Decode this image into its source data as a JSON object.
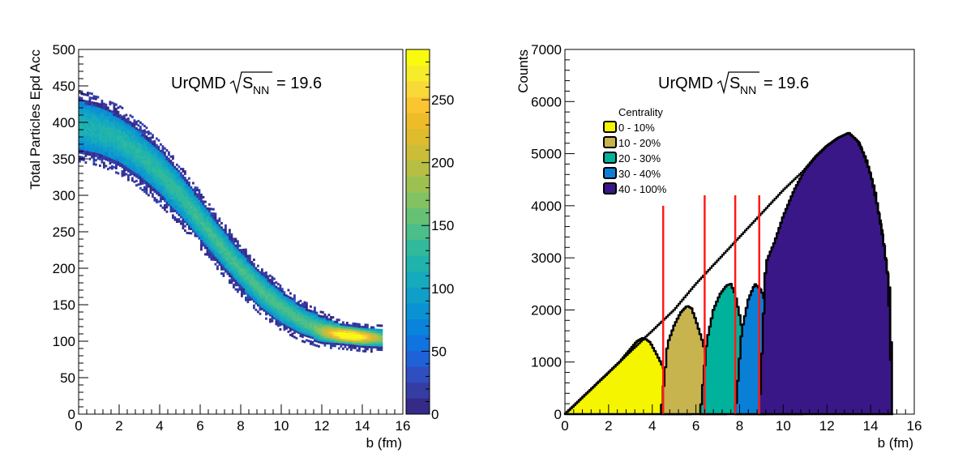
{
  "chart_data": [
    {
      "type": "heatmap",
      "title": "UrQMD",
      "title_symbol": "S",
      "title_subscript": "NN",
      "title_value": "= 19.6",
      "xlabel": "b (fm)",
      "ylabel": "Total Particles Epd Acc",
      "xlim": [
        0,
        16
      ],
      "ylim": [
        0,
        500
      ],
      "xticks": [
        "0",
        "2",
        "4",
        "6",
        "8",
        "10",
        "12",
        "14",
        "16"
      ],
      "yticks": [
        "0",
        "50",
        "100",
        "150",
        "200",
        "250",
        "300",
        "350",
        "400",
        "450",
        "500"
      ],
      "colorbar": {
        "zlim": [
          0,
          290
        ],
        "ticks": [
          "0",
          "50",
          "100",
          "150",
          "200",
          "250"
        ],
        "colors": [
          "#352a87",
          "#353ca4",
          "#2f4fc0",
          "#1f62d8",
          "#0f73e0",
          "#0983db",
          "#0a92d2",
          "#0f9fc9",
          "#16aabd",
          "#20b3ad",
          "#31b99b",
          "#4bbe89",
          "#66c175",
          "#82c262",
          "#9dc151",
          "#b6bf43",
          "#cbbd38",
          "#dfbb2e",
          "#efbc29",
          "#fbc531",
          "#f8d937",
          "#f7ec2a",
          "#f9fb0e"
        ]
      },
      "band": {
        "x_range": [
          0,
          15
        ],
        "center_y": [
          [
            0,
            395
          ],
          [
            1,
            388
          ],
          [
            2,
            375
          ],
          [
            3,
            355
          ],
          [
            4,
            330
          ],
          [
            5,
            300
          ],
          [
            6,
            265
          ],
          [
            7,
            230
          ],
          [
            8,
            197
          ],
          [
            9,
            168
          ],
          [
            10,
            145
          ],
          [
            11,
            127
          ],
          [
            12,
            115
          ],
          [
            13,
            108
          ],
          [
            14,
            104
          ],
          [
            15,
            102
          ]
        ],
        "half_width_y": [
          [
            0,
            38
          ],
          [
            2,
            36
          ],
          [
            4,
            34
          ],
          [
            6,
            30
          ],
          [
            8,
            27
          ],
          [
            10,
            24
          ],
          [
            12,
            19
          ],
          [
            13,
            15
          ],
          [
            15,
            14
          ]
        ],
        "hotspot": {
          "x": 13.3,
          "y": 106
        }
      }
    },
    {
      "type": "area",
      "title": "UrQMD",
      "title_symbol": "S",
      "title_subscript": "NN",
      "title_value": "= 19.6",
      "xlabel": "b (fm)",
      "ylabel": "Counts",
      "xlim": [
        0,
        16
      ],
      "ylim": [
        0,
        7000
      ],
      "xticks": [
        "0",
        "2",
        "4",
        "6",
        "8",
        "10",
        "12",
        "14",
        "16"
      ],
      "yticks": [
        "0",
        "1000",
        "2000",
        "3000",
        "4000",
        "5000",
        "6000",
        "7000"
      ],
      "legend_title": "Centrality",
      "total_outline": {
        "x": [
          0,
          1,
          2,
          3,
          4,
          5,
          6,
          7,
          8,
          9,
          10,
          11,
          11.5,
          12,
          12.5,
          13,
          13.5,
          14,
          14.5,
          14.8,
          15
        ],
        "y": [
          0,
          400,
          800,
          1200,
          1600,
          2000,
          2500,
          2950,
          3400,
          3850,
          4300,
          4700,
          4950,
          5150,
          5300,
          5400,
          5200,
          4600,
          3600,
          2600,
          0
        ]
      },
      "series": [
        {
          "name": "0 - 10%",
          "color": "#f5f500",
          "x": [
            0,
            0.5,
            1,
            1.5,
            2,
            2.5,
            3,
            3.3,
            3.6,
            3.9,
            4.2,
            4.5,
            4.8,
            5.1,
            5.5,
            5.8
          ],
          "y": [
            0,
            200,
            400,
            600,
            800,
            1000,
            1250,
            1400,
            1470,
            1380,
            1150,
            900,
            600,
            300,
            60,
            0
          ]
        },
        {
          "name": "10 - 20%",
          "color": "#c8b44e",
          "x": [
            4.4,
            4.7,
            5.0,
            5.3,
            5.6,
            5.8,
            6.0,
            6.3,
            6.6,
            6.9,
            7.2,
            7.4
          ],
          "y": [
            0,
            1350,
            1700,
            1950,
            2080,
            2030,
            1800,
            1400,
            900,
            400,
            80,
            0
          ]
        },
        {
          "name": "20 - 30%",
          "color": "#00b29b",
          "x": [
            6.2,
            6.5,
            6.8,
            7.1,
            7.4,
            7.6,
            7.8,
            8.0,
            8.3,
            8.6,
            8.9,
            9.2
          ],
          "y": [
            0,
            1400,
            2000,
            2300,
            2470,
            2500,
            2300,
            1900,
            1200,
            600,
            150,
            0
          ]
        },
        {
          "name": "30 - 40%",
          "color": "#0a7fd6",
          "x": [
            7.8,
            8.1,
            8.4,
            8.7,
            9.0,
            9.3,
            9.5,
            9.8,
            10.1,
            10.5,
            10.9
          ],
          "y": [
            0,
            1600,
            2200,
            2500,
            2380,
            2000,
            1600,
            1000,
            500,
            100,
            0
          ]
        },
        {
          "name": "40 - 100%",
          "color": "#3a1787",
          "x": [
            8.9,
            9.2,
            9.6,
            10.0,
            10.5,
            11.0,
            11.5,
            12.0,
            12.5,
            13.0,
            13.4,
            13.8,
            14.2,
            14.6,
            14.9,
            15.0
          ],
          "y": [
            0,
            2900,
            3300,
            3800,
            4300,
            4700,
            4950,
            5150,
            5300,
            5400,
            5250,
            4900,
            4300,
            3300,
            2300,
            0
          ]
        }
      ],
      "cut_lines_x": [
        4.5,
        6.4,
        7.8,
        8.9
      ]
    }
  ]
}
